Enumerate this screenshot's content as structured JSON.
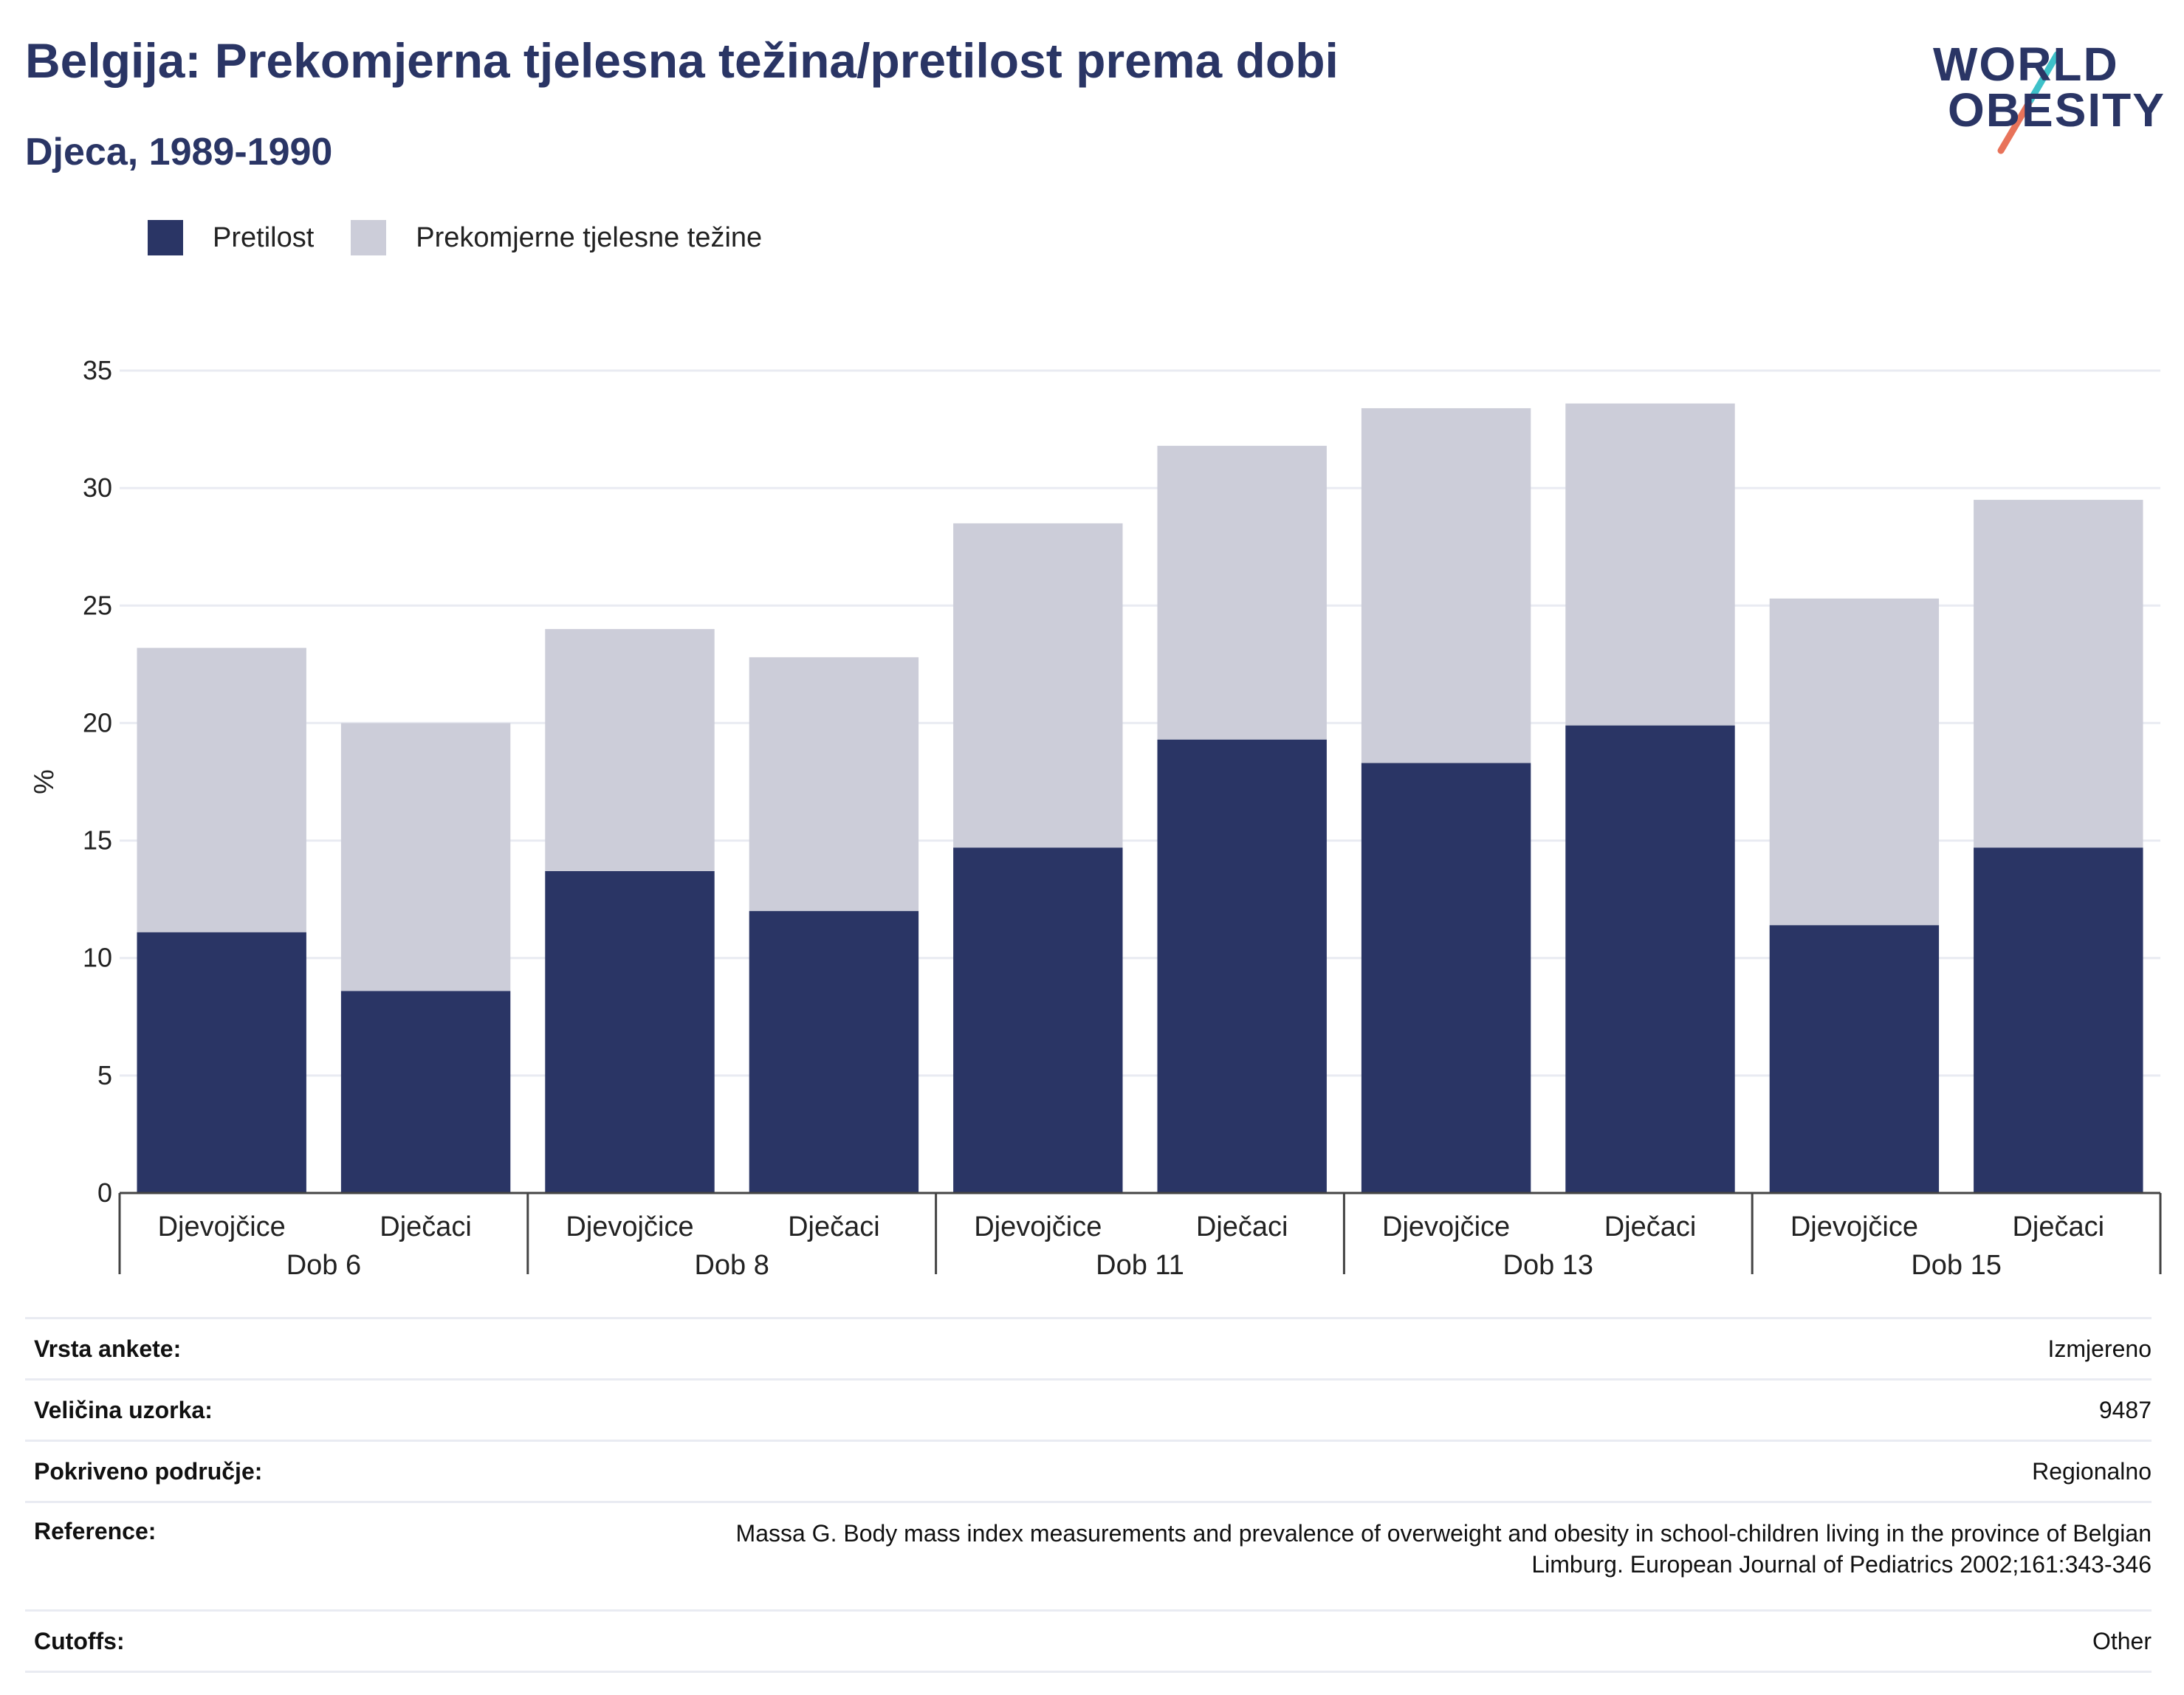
{
  "header": {
    "title": "Belgija: Prekomjerna tjelesna težina/pretilost prema dobi",
    "subtitle": "Djeca, 1989-1990"
  },
  "logo": {
    "line1": "WORLD",
    "line2": "OBESITY",
    "accent_colors": [
      "#3ec1c9",
      "#e8735a"
    ]
  },
  "legend": [
    {
      "label": "Pretilost",
      "color": "#2a3565"
    },
    {
      "label": "Prekomjerne tjelesne težine",
      "color": "#cccdd9"
    }
  ],
  "chart_data": {
    "type": "bar",
    "stacked": true,
    "ylabel": "%",
    "ylim": [
      0,
      35
    ],
    "yticks": [
      0,
      5,
      10,
      15,
      20,
      25,
      30,
      35
    ],
    "grid": true,
    "legend_position": "top-left",
    "groups": [
      "Dob 6",
      "Dob 8",
      "Dob 11",
      "Dob 13",
      "Dob 15"
    ],
    "categories": [
      "Djevojčice",
      "Dječaci",
      "Djevojčice",
      "Dječaci",
      "Djevojčice",
      "Dječaci",
      "Djevojčice",
      "Dječaci",
      "Djevojčice",
      "Dječaci"
    ],
    "series": [
      {
        "name": "Pretilost",
        "color": "#2a3565",
        "values": [
          11.1,
          8.6,
          13.7,
          12.0,
          14.7,
          19.3,
          18.3,
          19.9,
          11.4,
          14.7
        ]
      },
      {
        "name": "Prekomjerne tjelesne težine",
        "color": "#cccdd9",
        "values": [
          12.1,
          11.4,
          10.3,
          10.8,
          13.8,
          12.5,
          15.1,
          13.7,
          13.9,
          14.8
        ]
      }
    ]
  },
  "info": [
    {
      "label": "Vrsta ankete:",
      "value": "Izmjereno"
    },
    {
      "label": "Veličina uzorka:",
      "value": "9487"
    },
    {
      "label": "Pokriveno područje:",
      "value": "Regionalno"
    },
    {
      "label": "Reference:",
      "value_lines": [
        "Massa G. Body mass index measurements and prevalence of overweight and obesity in school-children living in the province of Belgian",
        "Limburg. European Journal of Pediatrics 2002;161:343-346"
      ]
    },
    {
      "label": "Cutoffs:",
      "value": "Other"
    }
  ]
}
